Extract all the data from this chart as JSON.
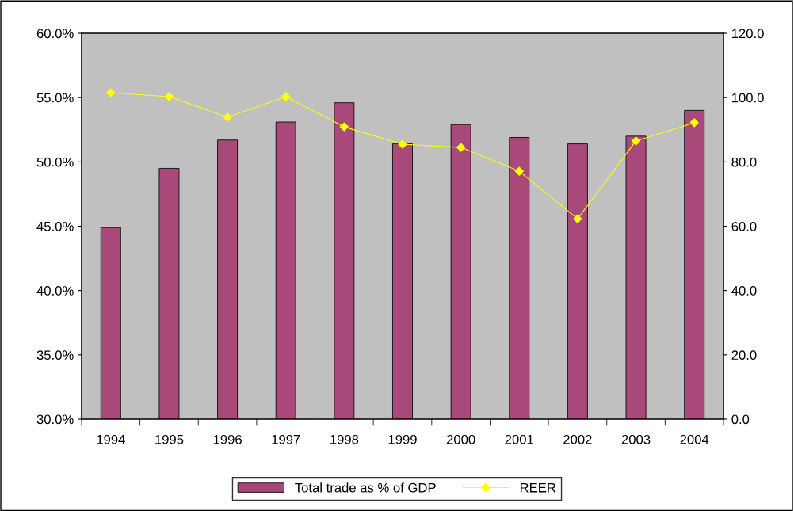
{
  "chart_data": {
    "type": "bar",
    "categories": [
      "1994",
      "1995",
      "1996",
      "1997",
      "1998",
      "1999",
      "2000",
      "2001",
      "2002",
      "2003",
      "2004"
    ],
    "series": [
      {
        "name": "Total trade as % of GDP",
        "color": "#a8497a",
        "values": [
          44.9,
          49.5,
          51.7,
          53.1,
          54.6,
          51.4,
          52.9,
          51.9,
          51.4,
          52.0,
          54.0
        ]
      },
      {
        "name": "REER",
        "type": "line",
        "axis": "y2",
        "color": "#ffff00",
        "marker": "diamond",
        "values": [
          101.5,
          100.3,
          93.9,
          100.3,
          90.9,
          85.5,
          84.5,
          77.1,
          62.3,
          86.5,
          92.2
        ]
      }
    ],
    "ylim": [
      30,
      60
    ],
    "yticks": [
      {
        "value": 30,
        "label": "30.0%"
      },
      {
        "value": 35,
        "label": "35.0%"
      },
      {
        "value": 40,
        "label": "40.0%"
      },
      {
        "value": 45,
        "label": "45.0%"
      },
      {
        "value": 50,
        "label": "50.0%"
      },
      {
        "value": 55,
        "label": "55.0%"
      },
      {
        "value": 60,
        "label": "60.0%"
      }
    ],
    "y2lim": [
      0,
      120
    ],
    "y2ticks": [
      {
        "value": 0,
        "label": "0.0"
      },
      {
        "value": 20,
        "label": "20.0"
      },
      {
        "value": 40,
        "label": "40.0"
      },
      {
        "value": 60,
        "label": "60.0"
      },
      {
        "value": 80,
        "label": "80.0"
      },
      {
        "value": 100,
        "label": "100.0"
      },
      {
        "value": 120,
        "label": "120.0"
      }
    ],
    "grid": false,
    "legend": "bottom"
  }
}
